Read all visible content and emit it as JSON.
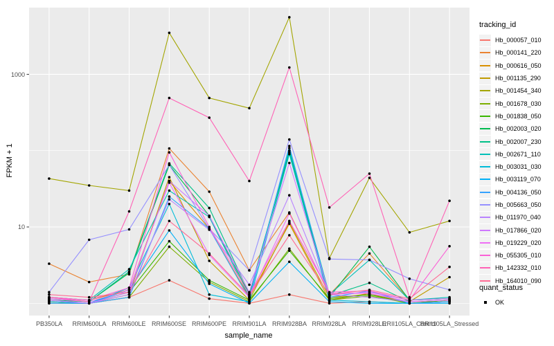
{
  "chart_data": {
    "type": "line",
    "title": "",
    "xlabel": "sample_name",
    "ylabel": "FPKM + 1",
    "x_categories": [
      "PB350LA",
      "RRIM600LA",
      "RRIM600LE",
      "RRIM600SE",
      "RRIM600PE",
      "RRIM901LA",
      "RRIM928BA",
      "RRIM928LA",
      "RRIM928LE",
      "RRII105LA_Control",
      "RRII105LA_Stressed"
    ],
    "y_scale": "log10",
    "y_ticks": [
      10,
      1000
    ],
    "y_tick_labels": [
      "10",
      "1000"
    ],
    "y_minor_gridlines": [
      1,
      100
    ],
    "ylim": [
      0.9,
      7500
    ],
    "grid": "on",
    "legend_position": "right",
    "panel_bg": "#EBEBEB",
    "grid_color": "#FFFFFF",
    "legend_key_bg": "#F2F2F2",
    "tick_text_color": "#4D4D4D",
    "point_color": "#000000",
    "legend_title": "tracking_id",
    "series": [
      {
        "name": "Hb_000057_010",
        "color": "#F8766D",
        "values": [
          1.1,
          1.0,
          1.2,
          2.0,
          1.15,
          1.0,
          1.3,
          1.0,
          1.05,
          1.0,
          1.1
        ]
      },
      {
        "name": "Hb_000141_220",
        "color": "#EA8331",
        "values": [
          3.3,
          1.9,
          2.4,
          107,
          29,
          2.7,
          15.5,
          1.3,
          4.5,
          1.1,
          1.15
        ]
      },
      {
        "name": "Hb_000616_050",
        "color": "#D89000",
        "values": [
          1.2,
          1.1,
          1.5,
          40,
          9.5,
          1.2,
          11,
          1.1,
          1.35,
          1.0,
          1.1
        ]
      },
      {
        "name": "Hb_001135_290",
        "color": "#C09B00",
        "values": [
          1.05,
          1.0,
          1.3,
          45,
          3.6,
          1.1,
          11.5,
          1.2,
          1.3,
          1.05,
          2.2
        ]
      },
      {
        "name": "Hb_001454_340",
        "color": "#A3A500",
        "values": [
          43,
          35,
          30,
          3500,
          490,
          360,
          5600,
          3.9,
          44,
          8.5,
          12
        ]
      },
      {
        "name": "Hb_001678_030",
        "color": "#7CAE00",
        "values": [
          1.0,
          1.0,
          1.2,
          5.5,
          1.9,
          1.05,
          5.2,
          1.1,
          1.25,
          1.0,
          1.05
        ]
      },
      {
        "name": "Hb_001838_050",
        "color": "#39B600",
        "values": [
          1.05,
          1.0,
          1.4,
          6.5,
          2.0,
          1.1,
          4.9,
          1.15,
          1.3,
          1.0,
          1.1
        ]
      },
      {
        "name": "Hb_002003_020",
        "color": "#00BB4E",
        "values": [
          1.1,
          1.05,
          2.5,
          65,
          14,
          1.3,
          95,
          1.2,
          5.5,
          1.1,
          1.15
        ]
      },
      {
        "name": "Hb_002007_230",
        "color": "#00C087",
        "values": [
          1.15,
          1.05,
          2.6,
          68,
          17.7,
          1.35,
          100,
          1.25,
          1.85,
          1.05,
          1.1
        ]
      },
      {
        "name": "Hb_002671_110",
        "color": "#00C0B8",
        "values": [
          1.2,
          1.1,
          2.8,
          30,
          13.5,
          1.2,
          108,
          1.3,
          3.7,
          1.1,
          1.2
        ]
      },
      {
        "name": "Hb_003031_030",
        "color": "#00BCD8",
        "values": [
          1.1,
          1.0,
          1.6,
          20,
          1.3,
          1.05,
          90,
          1.1,
          1.05,
          1.0,
          1.05
        ]
      },
      {
        "name": "Hb_003119_070",
        "color": "#00B0F6",
        "values": [
          1.05,
          1.0,
          1.5,
          9,
          1.8,
          1.0,
          3.5,
          1.05,
          1.0,
          1.0,
          1.0
        ]
      },
      {
        "name": "Hb_004136_050",
        "color": "#35A2FF",
        "values": [
          1.0,
          1.0,
          1.2,
          25,
          9.5,
          1.15,
          115,
          1.2,
          1.45,
          1.0,
          1.05
        ]
      },
      {
        "name": "Hb_005663_050",
        "color": "#9590FF",
        "values": [
          1.4,
          6.8,
          9.3,
          65,
          9.5,
          2.7,
          140,
          3.8,
          3.7,
          2.1,
          1.5
        ]
      },
      {
        "name": "Hb_011970_040",
        "color": "#B983FF",
        "values": [
          1.1,
          1.0,
          1.3,
          23,
          9.2,
          1.75,
          26,
          1.3,
          1.2,
          1.05,
          1.1
        ]
      },
      {
        "name": "Hb_017866_020",
        "color": "#CF78FF",
        "values": [
          1.1,
          1.0,
          1.4,
          40,
          14,
          1.4,
          69,
          1.3,
          1.4,
          1.1,
          1.15
        ]
      },
      {
        "name": "Hb_019229_020",
        "color": "#EE6EF6",
        "values": [
          1.15,
          1.05,
          1.5,
          38,
          4.3,
          1.2,
          15,
          1.35,
          1.35,
          1.05,
          1.1
        ]
      },
      {
        "name": "Hb_055305_010",
        "color": "#FB61D7",
        "values": [
          1.2,
          1.1,
          1.6,
          95,
          10,
          1.3,
          12,
          1.4,
          1.45,
          1.1,
          5.6
        ]
      },
      {
        "name": "Hb_142332_010",
        "color": "#FF62B6",
        "values": [
          1.2,
          1.05,
          16,
          490,
          270,
          40,
          1230,
          18,
          50,
          1.2,
          22
        ]
      },
      {
        "name": "Hb_164010_090",
        "color": "#FF6B94",
        "values": [
          1.3,
          1.2,
          1.4,
          12,
          4.5,
          1.25,
          7.8,
          1.3,
          1.5,
          1.15,
          3.0
        ]
      }
    ],
    "quant_status": {
      "title": "quant_status",
      "items": [
        {
          "label": "OK",
          "marker": "black-point"
        }
      ]
    }
  }
}
